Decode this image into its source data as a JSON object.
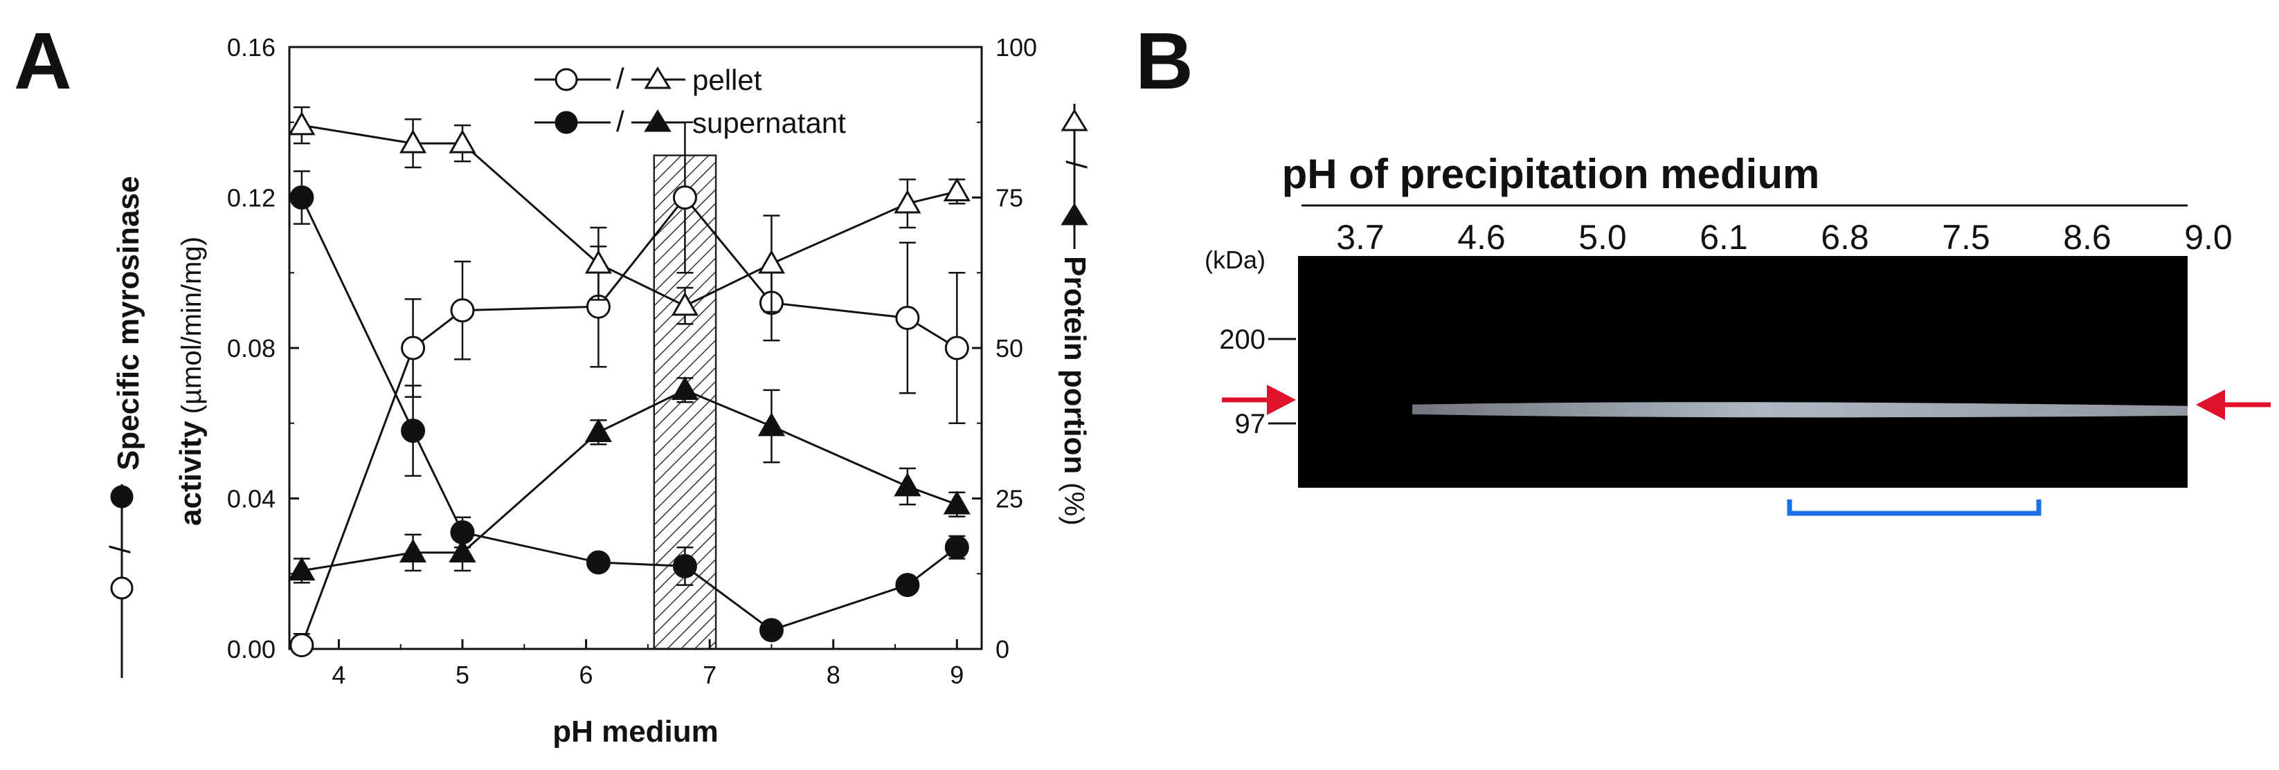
{
  "panel_a": {
    "letter": "A",
    "legend": {
      "pellet": "pellet",
      "supernatant": "supernatant",
      "separator": "/"
    },
    "left_axis": {
      "label_bold": "Specific myrosinase activity",
      "label_unit": "(µmol/min/mg)",
      "label_line1": "Specific myrosinase",
      "label_line2_bold": "activity"
    },
    "right_axis": {
      "label_bold": "Protein portion",
      "label_unit": "(%)"
    }
  },
  "panel_b": {
    "letter": "B",
    "title": "pH of precipitation medium",
    "kda_label": "(kDa)",
    "lanes": [
      "3.7",
      "4.6",
      "5.0",
      "6.1",
      "6.8",
      "7.5",
      "8.6",
      "9.0"
    ],
    "markers": [
      {
        "label": "200",
        "kda": 200
      },
      {
        "label": "97",
        "kda": 97
      }
    ],
    "band_kda": 110,
    "highlight_lanes": [
      "6.8",
      "7.5",
      "8.6"
    ],
    "colors": {
      "gel": "#000000",
      "arrow": "#e0112b",
      "bracket": "#1a6fe8",
      "band": "#cfd8e6"
    }
  },
  "chart_data": {
    "type": "scatter",
    "title": "",
    "xlabel": "pH medium",
    "ylabel": "Specific myrosinase activity (µmol/min/mg)",
    "y2label": "Protein portion (%)",
    "xlim": [
      3.6,
      9.2
    ],
    "ylim": [
      0,
      0.16
    ],
    "y2lim": [
      0,
      100
    ],
    "x_ticks": [
      4,
      5,
      6,
      7,
      8,
      9
    ],
    "y_ticks": [
      0.0,
      0.04,
      0.08,
      0.12,
      0.16
    ],
    "y_tick_labels": [
      "0.00",
      "0.04",
      "0.08",
      "0.12",
      "0.16"
    ],
    "y2_ticks": [
      0,
      25,
      50,
      75,
      100
    ],
    "x": [
      3.7,
      4.6,
      5.0,
      6.1,
      6.8,
      7.5,
      8.6,
      9.0
    ],
    "highlight_x_range": [
      6.55,
      7.05
    ],
    "series": [
      {
        "name": "pellet activity",
        "axis": "left",
        "marker": "circle-open",
        "values": [
          0.001,
          0.08,
          0.09,
          0.091,
          0.12,
          0.092,
          0.088,
          0.08
        ],
        "errors": [
          0.003,
          0.013,
          0.013,
          0.016,
          0.02,
          0.01,
          0.02,
          0.02
        ]
      },
      {
        "name": "supernatant activity",
        "axis": "left",
        "marker": "circle-filled",
        "values": [
          0.12,
          0.058,
          0.031,
          0.023,
          0.022,
          0.005,
          0.017,
          0.027
        ],
        "errors": [
          0.007,
          0.012,
          0.004,
          0.002,
          0.005,
          0.002,
          0.002,
          0.003
        ]
      },
      {
        "name": "pellet protein",
        "axis": "right",
        "marker": "triangle-open",
        "values": [
          87,
          84,
          84,
          64,
          57,
          64,
          74,
          76
        ],
        "errors": [
          3,
          4,
          3,
          6,
          3,
          8,
          4,
          2
        ]
      },
      {
        "name": "supernatant protein",
        "axis": "right",
        "marker": "triangle-filled",
        "values": [
          13,
          16,
          16,
          36,
          43,
          37,
          27,
          24
        ],
        "errors": [
          2,
          3,
          3,
          2,
          2,
          6,
          3,
          2
        ]
      }
    ]
  }
}
